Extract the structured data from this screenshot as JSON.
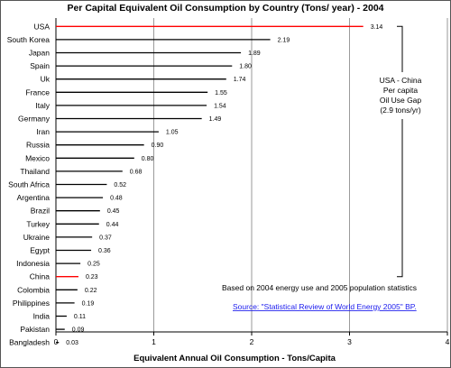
{
  "chart_data": {
    "type": "bar",
    "orientation": "horizontal",
    "title": "Per Capital Equivalent Oil Consumption by Country (Tons/ year) - 2004",
    "xlabel": "Equivalent Annual Oil Consumption - Tons/Capita",
    "ylabel": "",
    "xlim": [
      0,
      4
    ],
    "xticks": [
      0,
      1,
      2,
      3,
      4
    ],
    "grid": true,
    "categories": [
      "USA",
      "South Korea",
      "Japan",
      "Spain",
      "Uk",
      "France",
      "Italy",
      "Germany",
      "Iran",
      "Russia",
      "Mexico",
      "Thailand",
      "South Africa",
      "Argentina",
      "Brazil",
      "Turkey",
      "Ukraine",
      "Egypt",
      "Indonesia",
      "China",
      "Colombia",
      "Philippines",
      "India",
      "Pakistan",
      "Bangladesh"
    ],
    "values": [
      3.14,
      2.19,
      1.89,
      1.8,
      1.74,
      1.55,
      1.54,
      1.49,
      1.05,
      0.9,
      0.8,
      0.68,
      0.52,
      0.48,
      0.45,
      0.44,
      0.37,
      0.36,
      0.25,
      0.23,
      0.22,
      0.19,
      0.11,
      0.09,
      0.03
    ],
    "value_labels": [
      "3.14",
      "2.19",
      "1.89",
      "1.80",
      "1.74",
      "1.55",
      "1.54",
      "1.49",
      "1.05",
      "0.90",
      "0.80",
      "0.68",
      "0.52",
      "0.48",
      "0.45",
      "0.44",
      "0.37",
      "0.36",
      "0.25",
      "0.23",
      "0.22",
      "0.19",
      "0.11",
      "0.09",
      "0.03"
    ],
    "highlighted": [
      "USA",
      "China"
    ],
    "bar_color": "#000000",
    "highlight_color": "#ff0000",
    "annotation": {
      "lines": [
        "USA - China",
        "Per capita",
        "Oil Use Gap",
        "(2.9 tons/yr)"
      ]
    },
    "note": "Based on 2004 energy use  and 2005 population statistics",
    "source": "Source: \"Statistical Review of World Energy 2005\" BP."
  }
}
